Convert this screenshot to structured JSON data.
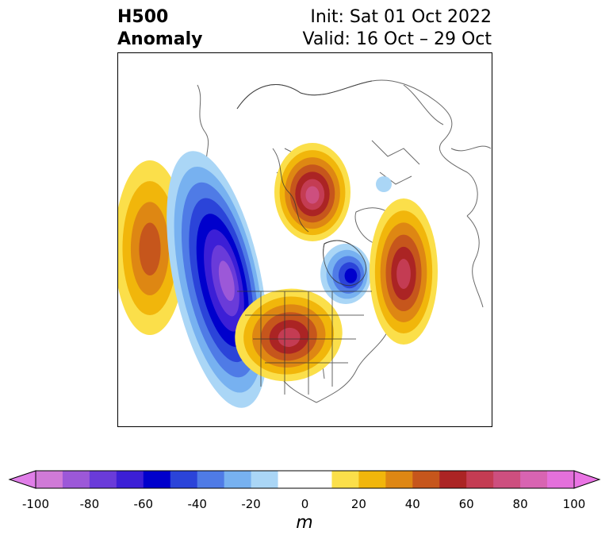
{
  "title": {
    "line1": "H500",
    "line2": "Anomaly",
    "init": "Init: Sat 01 Oct 2022",
    "valid": "Valid: 16 Oct – 29 Oct"
  },
  "colorbar": {
    "units": "m",
    "ticks": [
      "-100",
      "-80",
      "-60",
      "-40",
      "-20",
      "0",
      "20",
      "40",
      "60",
      "80",
      "100"
    ],
    "range": [
      -100,
      100
    ],
    "step": 10,
    "extend": "both",
    "colors": [
      "#d07ad7",
      "#9c58d8",
      "#6a3bd9",
      "#3c1fd6",
      "#0000cc",
      "#2b44d9",
      "#4f7be6",
      "#77b1f0",
      "#aad6f6",
      "#ffffff",
      "#ffffff",
      "#fbdf4a",
      "#f1b60b",
      "#de8713",
      "#c6561c",
      "#ab2424",
      "#c43c53",
      "#cd4f7f",
      "#d864b2",
      "#e470db"
    ],
    "under_color": "#e07ee8",
    "over_color": "#ea74e4"
  },
  "map": {
    "projection": "north-polar-stereographic",
    "field": "500 hPa geopotential height anomaly",
    "anomalies": [
      {
        "region": "North Pacific",
        "sign": "positive",
        "peak": 40
      },
      {
        "region": "Western North America / Gulf of Alaska",
        "sign": "negative",
        "peak": -80
      },
      {
        "region": "Arctic Ocean / Siberia",
        "sign": "positive",
        "peak": 70
      },
      {
        "region": "Central North America",
        "sign": "positive",
        "peak": 60
      },
      {
        "region": "Baffin Bay / Greenland",
        "sign": "negative",
        "peak": -50
      },
      {
        "region": "North Atlantic / Western Europe",
        "sign": "positive",
        "peak": 60
      },
      {
        "region": "Northern Siberia",
        "sign": "negative",
        "peak": -15
      }
    ]
  }
}
